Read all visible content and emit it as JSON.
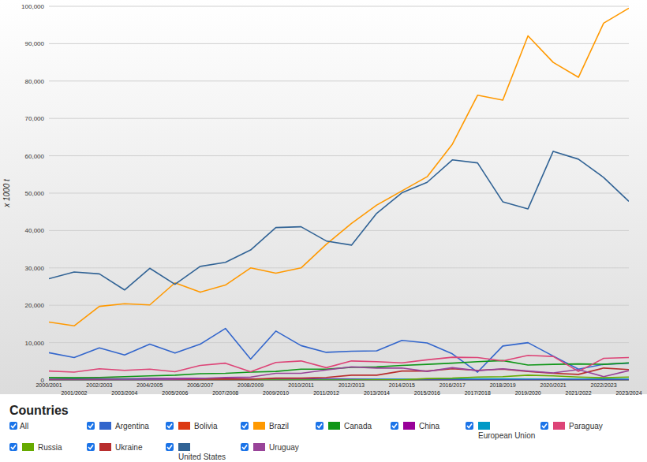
{
  "chart_data": {
    "type": "line",
    "y_label": "x 1000 t",
    "legend_title": "Countries",
    "legend_all": "All",
    "legend": "bottom",
    "grid": true,
    "categories": [
      "2000/2001",
      "2001/2002",
      "2002/2003",
      "2003/2004",
      "2004/2005",
      "2005/2006",
      "2006/2007",
      "2007/2008",
      "2008/2009",
      "2009/2010",
      "2010/2011",
      "2011/2012",
      "2012/2013",
      "2013/2014",
      "2014/2015",
      "2015/2016",
      "2016/2017",
      "2017/2018",
      "2018/2019",
      "2019/2020",
      "2020/2021",
      "2021/2022",
      "2022/2023",
      "2023/2024"
    ],
    "ylim": [
      0,
      100000
    ],
    "yticks": [
      0,
      {
        "value": 10000,
        "label": "10,000"
      },
      {
        "value": 20000,
        "label": "20,000"
      },
      {
        "value": 30000,
        "label": "30,000"
      },
      {
        "value": 40000,
        "label": "40,000"
      },
      {
        "value": 50000,
        "label": "50,000"
      },
      {
        "value": 60000,
        "label": "60,000"
      },
      {
        "value": 70000,
        "label": "70,000"
      },
      {
        "value": 80000,
        "label": "80,000"
      },
      {
        "value": 90000,
        "label": "90,000"
      },
      {
        "value": 100000,
        "label": "100,000"
      }
    ],
    "series": [
      {
        "name": "Argentina",
        "color": "#3366cc",
        "values": [
          7300,
          6000,
          8600,
          6700,
          9600,
          7200,
          9600,
          13800,
          5600,
          13100,
          9200,
          7400,
          7700,
          7800,
          10600,
          9900,
          7000,
          2100,
          9100,
          10000,
          6400,
          2900,
          4200,
          4500
        ]
      },
      {
        "name": "Bolivia",
        "color": "#dc3912",
        "values": [
          300,
          400,
          300,
          300,
          200,
          200,
          100,
          100,
          100,
          50,
          50,
          100,
          100,
          50,
          50,
          50,
          50,
          50,
          50,
          50,
          50,
          50,
          50,
          50
        ]
      },
      {
        "name": "Brazil",
        "color": "#ff9900",
        "values": [
          15500,
          14500,
          19700,
          20400,
          20100,
          26000,
          23500,
          25400,
          30000,
          28600,
          30000,
          36300,
          41900,
          46800,
          50600,
          54400,
          63100,
          76200,
          74900,
          92100,
          85000,
          81000,
          95500,
          99500
        ]
      },
      {
        "name": "Canada",
        "color": "#109618",
        "values": [
          700,
          600,
          700,
          900,
          1100,
          1300,
          1700,
          1800,
          2100,
          2300,
          2900,
          2900,
          3400,
          3500,
          3900,
          4200,
          4500,
          4900,
          5200,
          4000,
          4200,
          4300,
          4200,
          4600
        ]
      },
      {
        "name": "China",
        "color": "#990099",
        "values": [
          250,
          250,
          300,
          330,
          400,
          400,
          450,
          450,
          300,
          200,
          200,
          300,
          250,
          200,
          150,
          100,
          100,
          130,
          100,
          100,
          90,
          100,
          100,
          100
        ]
      },
      {
        "name": "European Union",
        "color": "#0099c6",
        "values": [
          200,
          200,
          200,
          250,
          200,
          150,
          150,
          100,
          100,
          100,
          100,
          150,
          150,
          200,
          200,
          250,
          250,
          300,
          300,
          250,
          250,
          250,
          250,
          250
        ]
      },
      {
        "name": "Paraguay",
        "color": "#dd4477",
        "values": [
          2400,
          2100,
          3000,
          2600,
          2900,
          2200,
          3900,
          4500,
          2200,
          4700,
          5100,
          3300,
          5100,
          4900,
          4600,
          5400,
          6100,
          6000,
          5100,
          6600,
          6300,
          2300,
          5800,
          6000
        ]
      },
      {
        "name": "Russia",
        "color": "#66aa00",
        "values": [
          0,
          0,
          0,
          0,
          0,
          0,
          0,
          0,
          0,
          0,
          0,
          0,
          0,
          50,
          50,
          400,
          500,
          800,
          900,
          1300,
          1100,
          800,
          600,
          800
        ]
      },
      {
        "name": "Ukraine",
        "color": "#b82e2e",
        "values": [
          100,
          100,
          100,
          100,
          100,
          100,
          200,
          300,
          200,
          500,
          500,
          700,
          1300,
          1300,
          2400,
          2400,
          3000,
          2600,
          2900,
          2300,
          1800,
          1500,
          3200,
          2800
        ]
      },
      {
        "name": "United States",
        "color": "#316395",
        "values": [
          27100,
          28900,
          28400,
          24100,
          29900,
          25600,
          30400,
          31500,
          34800,
          40800,
          41000,
          37200,
          36100,
          44600,
          50100,
          52900,
          58900,
          58100,
          47700,
          45800,
          61200,
          59100,
          54200,
          47800
        ]
      },
      {
        "name": "Uruguay",
        "color": "#994499",
        "values": [
          0,
          0,
          0,
          50,
          100,
          200,
          400,
          700,
          800,
          1800,
          1800,
          2700,
          3500,
          3200,
          3200,
          2300,
          3300,
          2500,
          3000,
          2400,
          1900,
          2800,
          900,
          2500
        ]
      }
    ]
  }
}
